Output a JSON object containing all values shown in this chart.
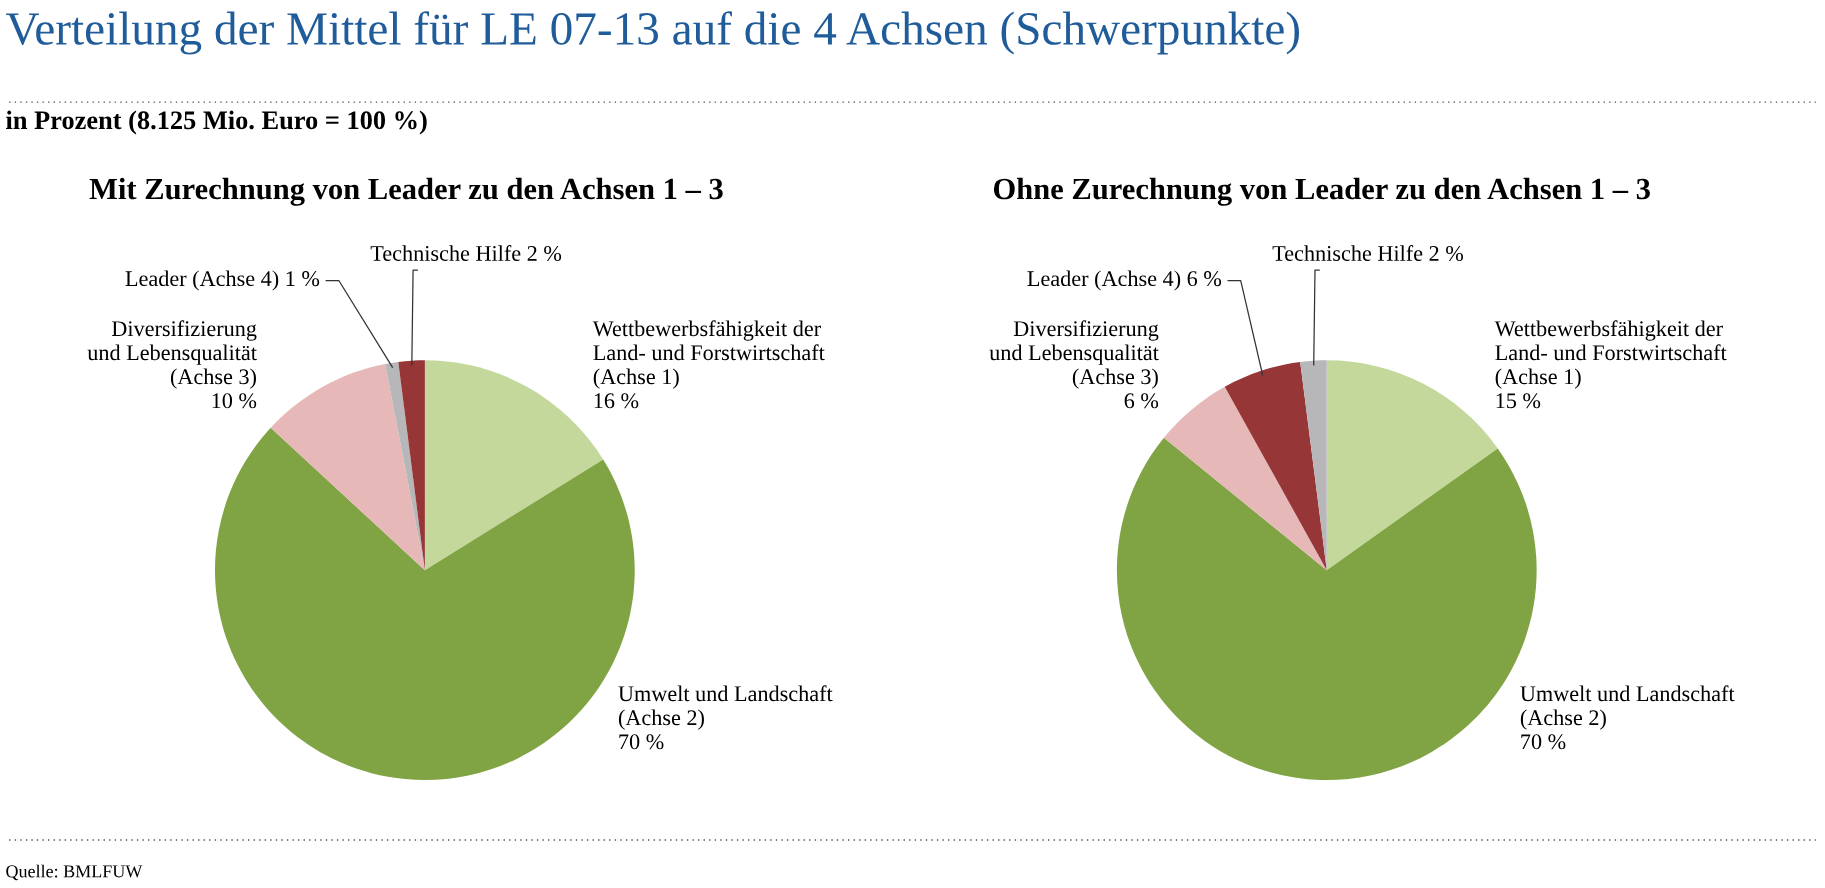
{
  "chart_data": [
    {
      "type": "pie",
      "title": "Verteilung der Mittel für LE 07-13 auf die 4 Achsen (Schwerpunkte)",
      "subtitle": "in Prozent (8.125 Mio. Euro = 100 %)",
      "annotations": [
        "Mit Zurechnung von Leader zu den Achsen 1 – 3"
      ],
      "categories": [
        "Wettbewerbsfähigkeit der\nLand- und Forstwirtschaft\n(Achse 1)",
        "Umwelt und Landschaft\n(Achse 2)",
        "Diversifizierung\nund Lebensqualität\n(Achse 3)",
        "Leader (Achse 4)",
        "Technische Hilfe"
      ],
      "values": [
        16,
        70,
        10,
        1,
        2
      ],
      "value_labels": [
        "16 %",
        "70 %",
        "10 %",
        "1 %",
        "2 %"
      ],
      "colors": [
        "#c4d89b",
        "#80a444",
        "#e6b8b8",
        "#b7b7b9",
        "#963636"
      ]
    },
    {
      "type": "pie",
      "annotations": [
        "Ohne Zurechnung von Leader zu den Achsen 1 – 3",
        "Quelle: BMLFUW"
      ],
      "categories": [
        "Wettbewerbsfähigkeit der\nLand- und Forstwirtschaft\n(Achse 1)",
        "Umwelt und Landschaft\n(Achse 2)",
        "Diversifizierung\nund Lebensqualität\n(Achse 3)",
        "Leader (Achse 4)",
        "Technische Hilfe"
      ],
      "values": [
        15,
        70,
        6,
        6,
        2
      ],
      "value_labels": [
        "15 %",
        "70 %",
        "6 %",
        "6 %",
        "2 %"
      ],
      "colors": [
        "#c4d89b",
        "#80a444",
        "#e6b8b8",
        "#963636",
        "#b7b7b9"
      ]
    }
  ]
}
